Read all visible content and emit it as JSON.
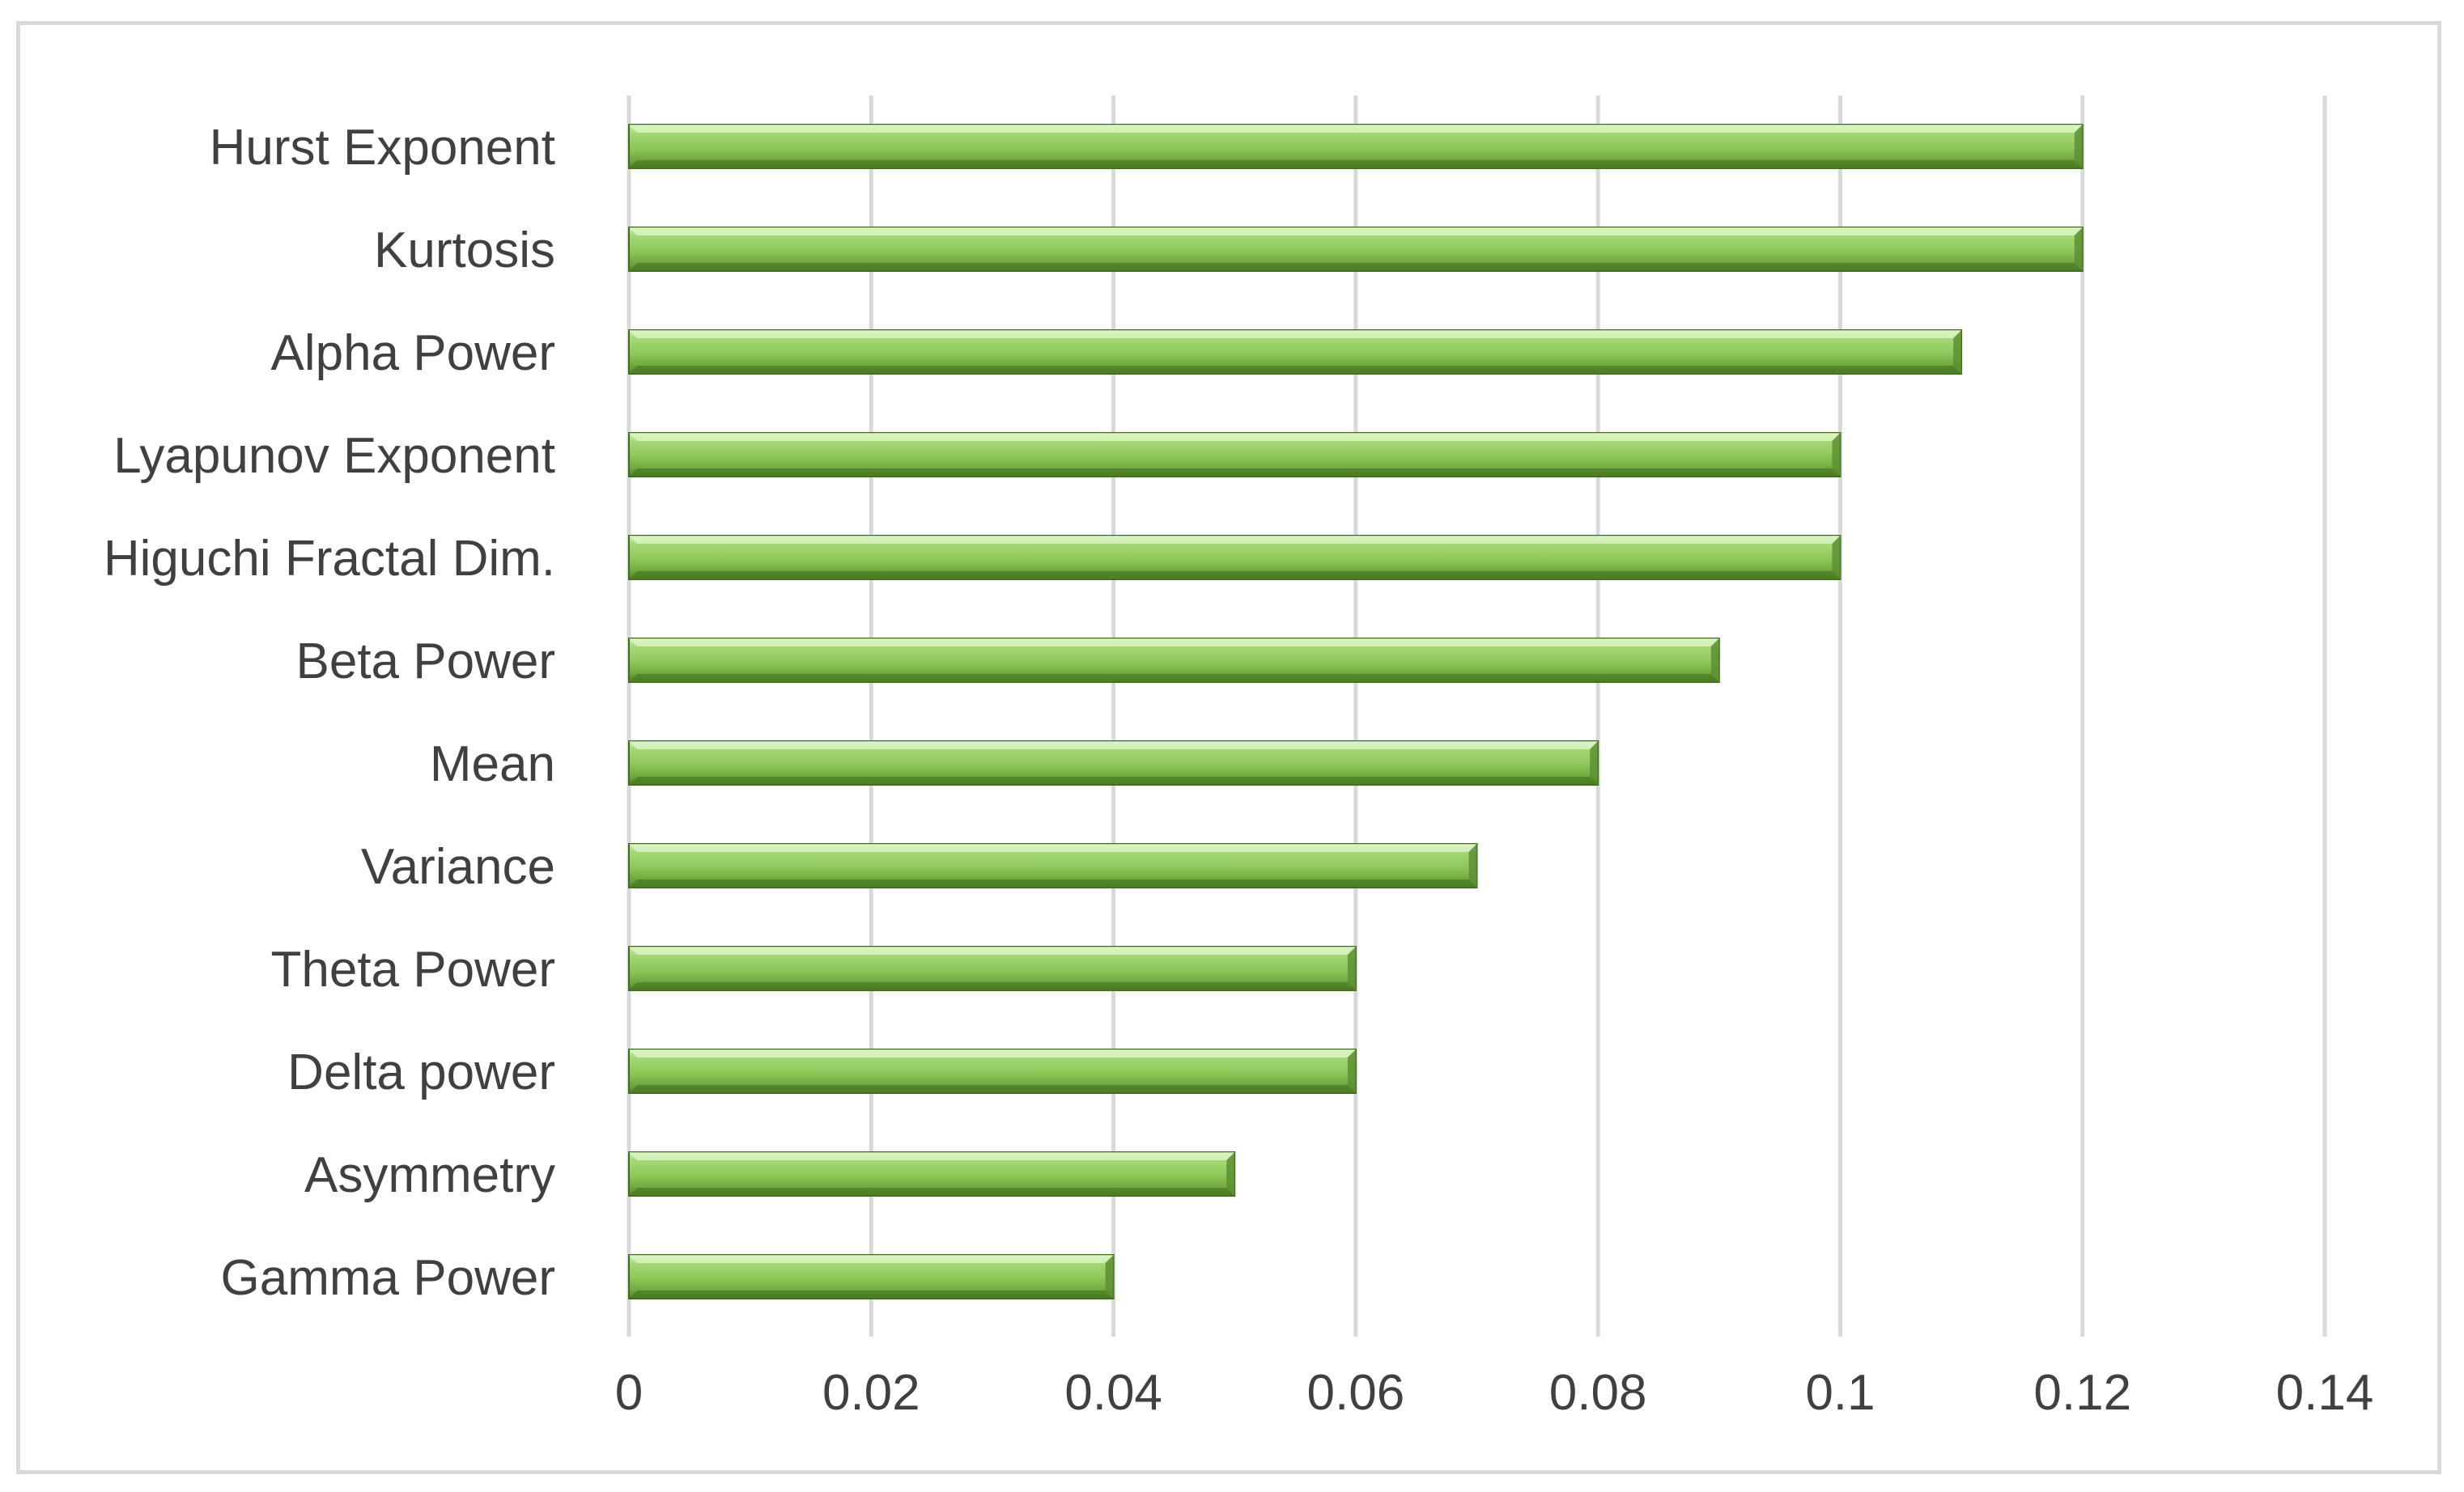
{
  "chart_data": {
    "type": "bar",
    "orientation": "horizontal",
    "title": "",
    "xlabel": "",
    "ylabel": "",
    "categories": [
      "Hurst Exponent",
      "Kurtosis",
      "Alpha Power",
      "Lyapunov Exponent",
      "Higuchi Fractal Dim.",
      "Beta Power",
      "Mean",
      "Variance",
      "Theta Power",
      "Delta power",
      "Asymmetry",
      "Gamma Power"
    ],
    "values": [
      0.12,
      0.12,
      0.11,
      0.1,
      0.1,
      0.09,
      0.08,
      0.07,
      0.06,
      0.06,
      0.05,
      0.04
    ],
    "xlim": [
      0,
      0.14
    ],
    "xticks": [
      "0",
      "0.02",
      "0.04",
      "0.06",
      "0.08",
      "0.1",
      "0.12",
      "0.14"
    ],
    "grid": "vertical",
    "legend": "none",
    "colors": {
      "bar_light": "#b4e08a",
      "bar_mid": "#8fc95a",
      "bar_dark": "#5e8f32",
      "bar_edge": "#3f6b1f",
      "grid": "#d9d9d9",
      "text": "#404040"
    }
  }
}
